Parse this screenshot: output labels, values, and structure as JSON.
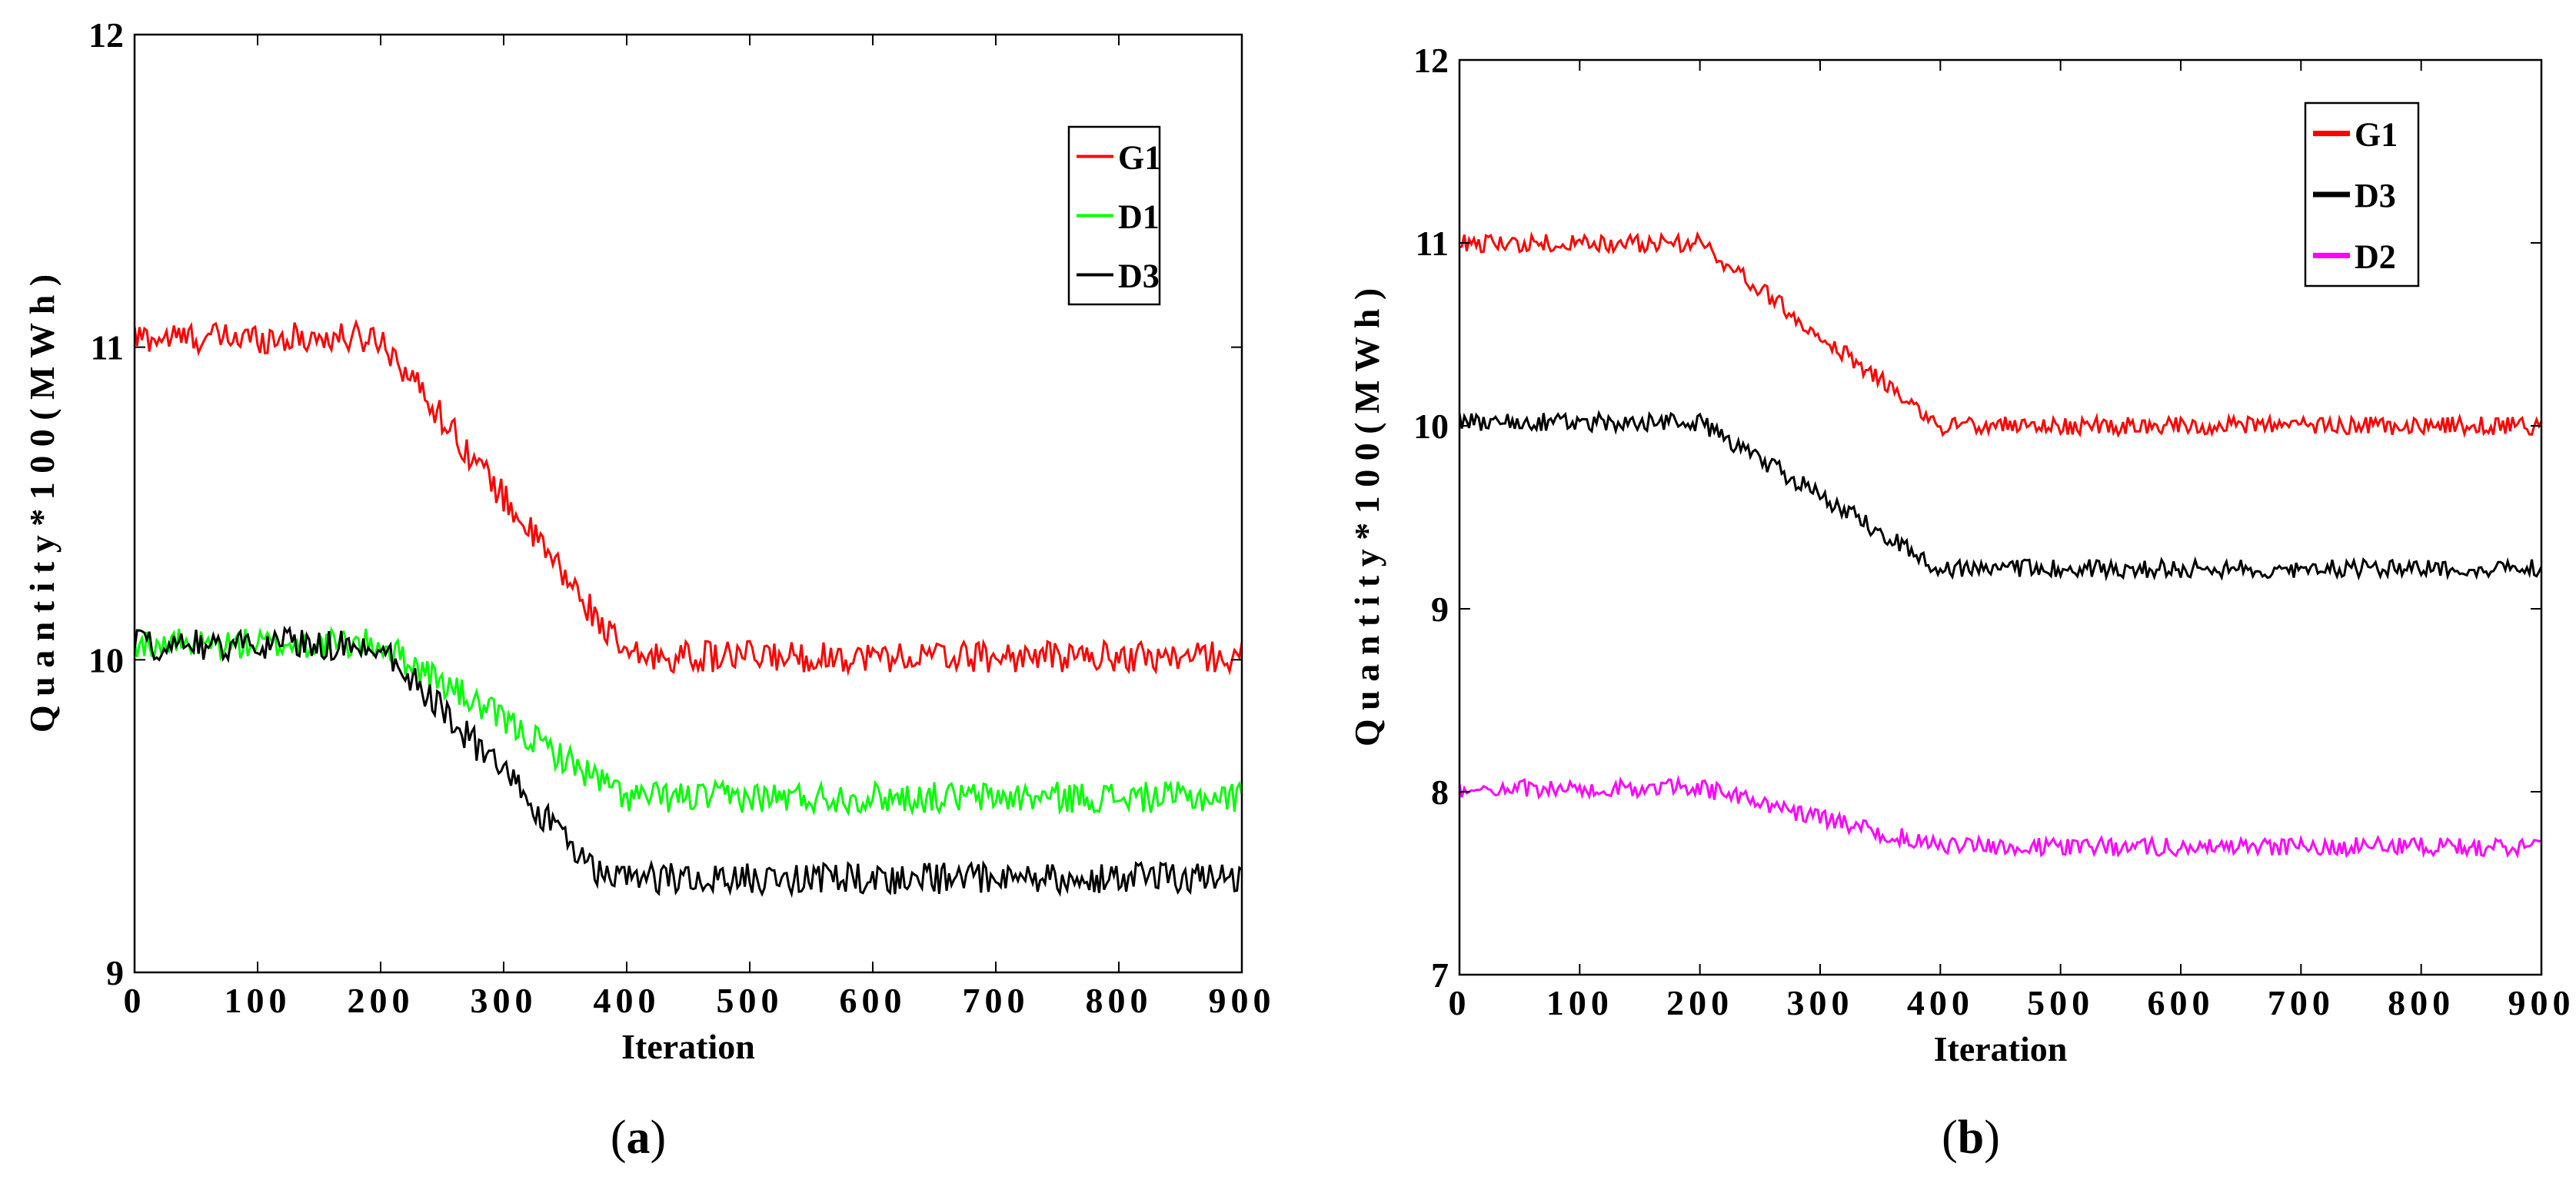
{
  "chart_data": [
    {
      "type": "line",
      "panel": "a",
      "caption_open": "(",
      "caption_letter": "a",
      "caption_close": ")",
      "xlabel": "Iteration",
      "ylabel": "Q u a n t i t y * 1 0 0 ( M W h )",
      "xlim": [
        0,
        900
      ],
      "ylim": [
        9,
        12
      ],
      "xticks": [
        "0",
        "100",
        "200",
        "300",
        "400",
        "500",
        "600",
        "700",
        "800",
        "900"
      ],
      "yticks": [
        "9",
        "10",
        "11",
        "12"
      ],
      "legend_position": "top-right",
      "series": [
        {
          "name": "G1",
          "color": "#ff0000",
          "start": 11.03,
          "end": 10.01,
          "decline_start": 200,
          "decline_end": 400,
          "noise": 0.05
        },
        {
          "name": "D1",
          "color": "#00ff00",
          "start": 10.05,
          "end": 9.56,
          "decline_start": 200,
          "decline_end": 400,
          "noise": 0.05
        },
        {
          "name": "D3",
          "color": "#000000",
          "start": 10.05,
          "end": 9.3,
          "decline_start": 200,
          "decline_end": 380,
          "noise": 0.05
        }
      ]
    },
    {
      "type": "line",
      "panel": "b",
      "caption_open": "(",
      "caption_letter": "b",
      "caption_close": ")",
      "xlabel": "Iteration",
      "ylabel": "Q u a n t i t y * 1 0 0 ( M W h )",
      "xlim": [
        0,
        900
      ],
      "ylim": [
        7,
        12
      ],
      "xticks": [
        "0",
        "100",
        "200",
        "300",
        "400",
        "500",
        "600",
        "700",
        "800",
        "900"
      ],
      "yticks": [
        "7",
        "8",
        "9",
        "10",
        "11",
        "12"
      ],
      "legend_position": "top-right",
      "series": [
        {
          "name": "G1",
          "color": "#ff0000",
          "start": 11.0,
          "end": 10.0,
          "decline_start": 200,
          "decline_end": 400,
          "noise": 0.05
        },
        {
          "name": "D3",
          "color": "#000000",
          "start": 10.02,
          "end": 9.22,
          "decline_start": 200,
          "decline_end": 400,
          "noise": 0.05
        },
        {
          "name": "D2",
          "color": "#ff00ff",
          "start": 8.02,
          "end": 7.7,
          "decline_start": 200,
          "decline_end": 400,
          "noise": 0.05
        }
      ]
    }
  ]
}
